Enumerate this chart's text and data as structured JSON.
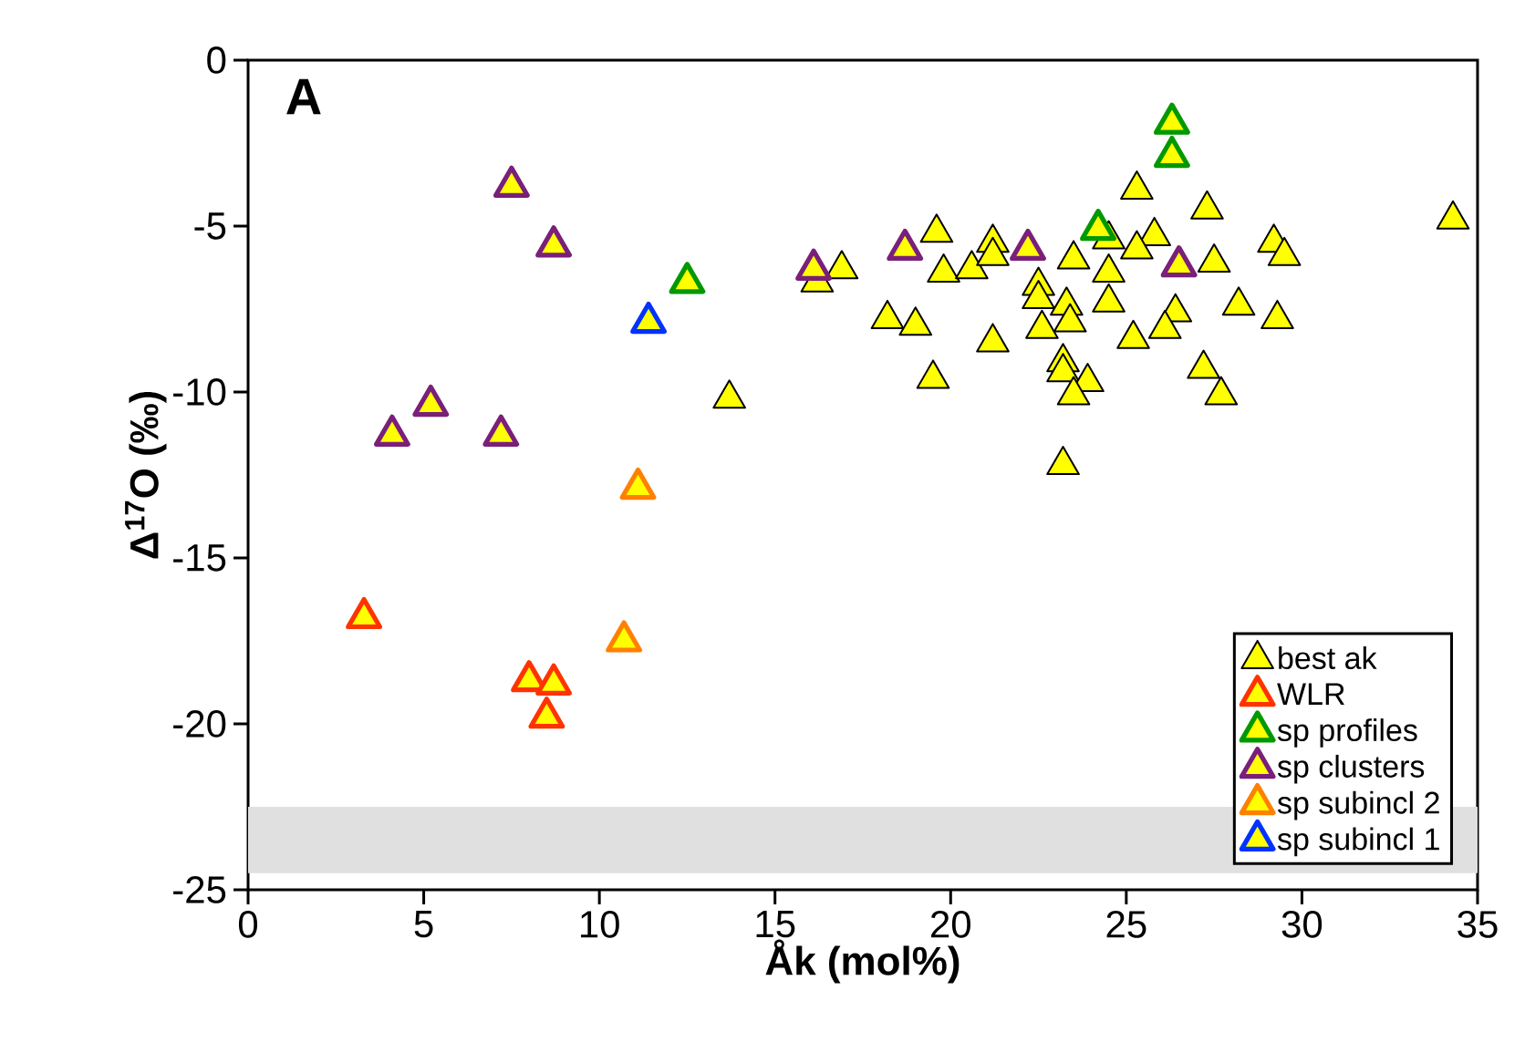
{
  "chart_data": {
    "type": "scatter",
    "xlabel": "Åk (mol%)",
    "ylabel": "Δ$^{17}$O (‰)",
    "annotations": [
      "A"
    ],
    "xlim": [
      0,
      35
    ],
    "xticks": [
      0,
      5,
      10,
      15,
      20,
      25,
      30,
      35
    ],
    "ylim": [
      -25,
      0
    ],
    "yticks": [
      -25,
      -20,
      -15,
      -10,
      -5,
      0
    ],
    "grid": false,
    "legend": "bottom right",
    "marker": "triangle",
    "bands": [
      {
        "axis": "y",
        "from": -24.5,
        "to": -22.5,
        "color": "#e0e0e0"
      }
    ],
    "series": [
      {
        "name": "best ak",
        "color": "#ffff00",
        "x": [
          13.7,
          16.9,
          16.2,
          19.6,
          19.8,
          20.6,
          21.2,
          21.2,
          18.2,
          19.0,
          19.5,
          21.2,
          23.5,
          22.5,
          22.5,
          23.3,
          22.6,
          23.4,
          23.2,
          23.2,
          23.9,
          23.5,
          23.2,
          24.5,
          24.5,
          24.5,
          25.2,
          25.3,
          25.8,
          26.2,
          26.4,
          26.1,
          27.3,
          27.5,
          27.2,
          27.7,
          28.2,
          29.2,
          29.5,
          29.3,
          34.3,
          25.3
        ],
        "values": [
          -10.2,
          -6.3,
          -6.7,
          -5.2,
          -6.4,
          -6.3,
          -5.5,
          -5.9,
          -7.8,
          -8.0,
          -9.6,
          -8.5,
          -6.0,
          -6.8,
          -7.2,
          -7.4,
          -8.1,
          -7.9,
          -9.1,
          -9.4,
          -9.7,
          -10.1,
          -12.2,
          -6.4,
          -7.3,
          -5.4,
          -8.4,
          -3.9,
          -5.3,
          null,
          -7.6,
          -8.1,
          -4.5,
          -6.1,
          -9.3,
          -10.1,
          -7.4,
          -5.5,
          -5.9,
          -7.8,
          -4.8,
          -5.7
        ]
      },
      {
        "name": "WLR",
        "color": "#ff3300",
        "x": [
          3.3,
          8.0,
          8.7,
          8.5
        ],
        "values": [
          -16.8,
          -18.7,
          -18.8,
          -19.8
        ]
      },
      {
        "name": "sp profiles",
        "color": "#009900",
        "x": [
          12.5,
          26.3,
          26.3,
          24.2
        ],
        "values": [
          -6.7,
          -1.9,
          -2.9,
          -5.1
        ]
      },
      {
        "name": "sp clusters",
        "color": "#7a1f7a",
        "x": [
          7.5,
          8.7,
          5.2,
          4.1,
          7.2,
          16.1,
          18.7,
          22.2,
          26.5
        ],
        "values": [
          -3.8,
          -5.6,
          -10.4,
          -11.3,
          -11.3,
          -6.3,
          -5.7,
          -5.7,
          -6.2
        ]
      },
      {
        "name": "sp subincl 2",
        "color": "#ff8000",
        "x": [
          11.1,
          10.7
        ],
        "values": [
          -12.9,
          -17.5
        ]
      },
      {
        "name": "sp subincl 1",
        "color": "#0033ff",
        "x": [
          11.4
        ],
        "values": [
          -7.9
        ]
      }
    ]
  }
}
